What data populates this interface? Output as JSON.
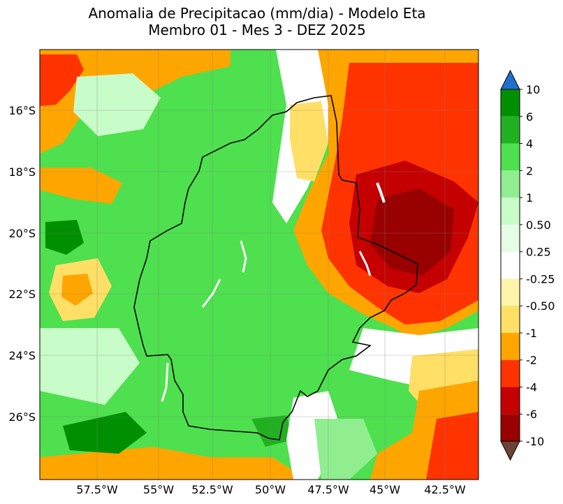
{
  "title": {
    "line1": "Anomalia de Precipitacao (mm/dia) - Modelo Eta",
    "line2": "Membro 01 - Mes 3 - DEZ 2025"
  },
  "axes": {
    "lat_ticks": [
      "16°S",
      "18°S",
      "20°S",
      "22°S",
      "24°S",
      "26°S"
    ],
    "lon_ticks": [
      "57.5°W",
      "55°W",
      "52.5°W",
      "50°W",
      "47.5°W",
      "45°W",
      "42.5°W"
    ]
  },
  "colorbar": {
    "labels": [
      "10",
      "6",
      "4",
      "2",
      "1",
      "0.50",
      "0.25",
      "-0.25",
      "-0.50",
      "-1",
      "-2",
      "-4",
      "-6",
      "-10"
    ],
    "colors": [
      "#1f6fd0",
      "#008f00",
      "#22b022",
      "#4ee04e",
      "#90ee90",
      "#c8fcc8",
      "#e4fde4",
      "#ffffff",
      "#fff5a8",
      "#ffdf66",
      "#ffa500",
      "#ff3300",
      "#c40000",
      "#990000",
      "#6b4234"
    ]
  },
  "map_colors": {
    "dry_strong": "#990000",
    "dry": "#c40000",
    "red": "#ff3300",
    "orange": "#ffa500",
    "yellow": "#ffdf66",
    "pale_yellow": "#fff5a8",
    "neutral": "#ffffff",
    "pale_green": "#c8fcc8",
    "light_green": "#90ee90",
    "green": "#4ee04e",
    "mid_green": "#22b022",
    "dark_green": "#008f00",
    "region_border": "#000000"
  }
}
